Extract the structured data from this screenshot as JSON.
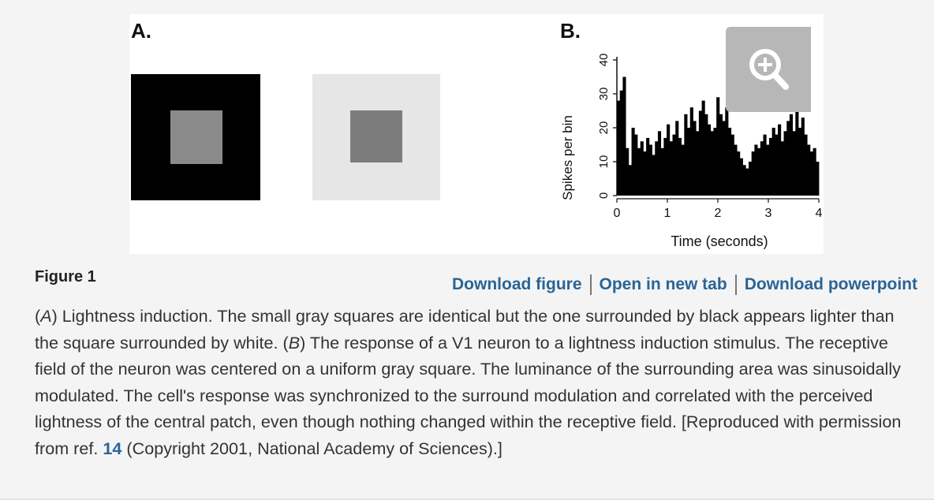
{
  "figure": {
    "panel_a_label": "A.",
    "panel_b_label": "B.",
    "zoom_icon": "zoom-in-icon",
    "figure_label": "Figure 1",
    "links": {
      "download_figure": "Download figure",
      "open_new_tab": "Open in new tab",
      "download_powerpoint": "Download powerpoint"
    },
    "caption": {
      "a_tag": "A",
      "part1": ") Lightness induction. The small gray squares are identical but the one surrounded by black appears lighter than the square surrounded by white. (",
      "b_tag": "B",
      "part2": ") The response of a V1 neuron to a lightness induction stimulus. The receptive field of the neuron was centered on a uniform gray square. The luminance of the surrounding area was sinusoidally modulated. The cell's response was synchronized to the surround modulation and correlated with the perceived lightness of the central patch, even though nothing changed within the receptive field. [Reproduced with permission from ref. ",
      "ref_number": "14",
      "part3": " (Copyright 2001, National Academy of Sciences).]"
    }
  },
  "colors": {
    "link": "#2a6496",
    "black_surround": "#000000",
    "white_surround": "#e6e6e6",
    "center_gray_left": "#8a8a8a",
    "center_gray_right": "#7c7c7c"
  },
  "chart_data": {
    "type": "bar",
    "xlabel": "Time (seconds)",
    "ylabel": "Spikes per bin",
    "xlim": [
      0,
      4
    ],
    "ylim": [
      0,
      40
    ],
    "xticks": [
      0,
      1,
      2,
      3,
      4
    ],
    "yticks": [
      0,
      10,
      20,
      30,
      40
    ],
    "values": [
      28,
      31,
      35,
      14,
      9,
      20,
      18,
      14,
      16,
      13,
      17,
      15,
      12,
      16,
      19,
      14,
      17,
      21,
      16,
      18,
      22,
      17,
      15,
      24,
      20,
      26,
      22,
      19,
      25,
      28,
      24,
      21,
      19,
      20,
      29,
      24,
      22,
      26,
      20,
      18,
      15,
      13,
      11,
      9,
      8,
      10,
      13,
      15,
      14,
      16,
      18,
      15,
      17,
      20,
      18,
      21,
      16,
      19,
      22,
      24,
      19,
      25,
      20,
      23,
      18,
      15,
      13,
      14,
      10
    ]
  }
}
